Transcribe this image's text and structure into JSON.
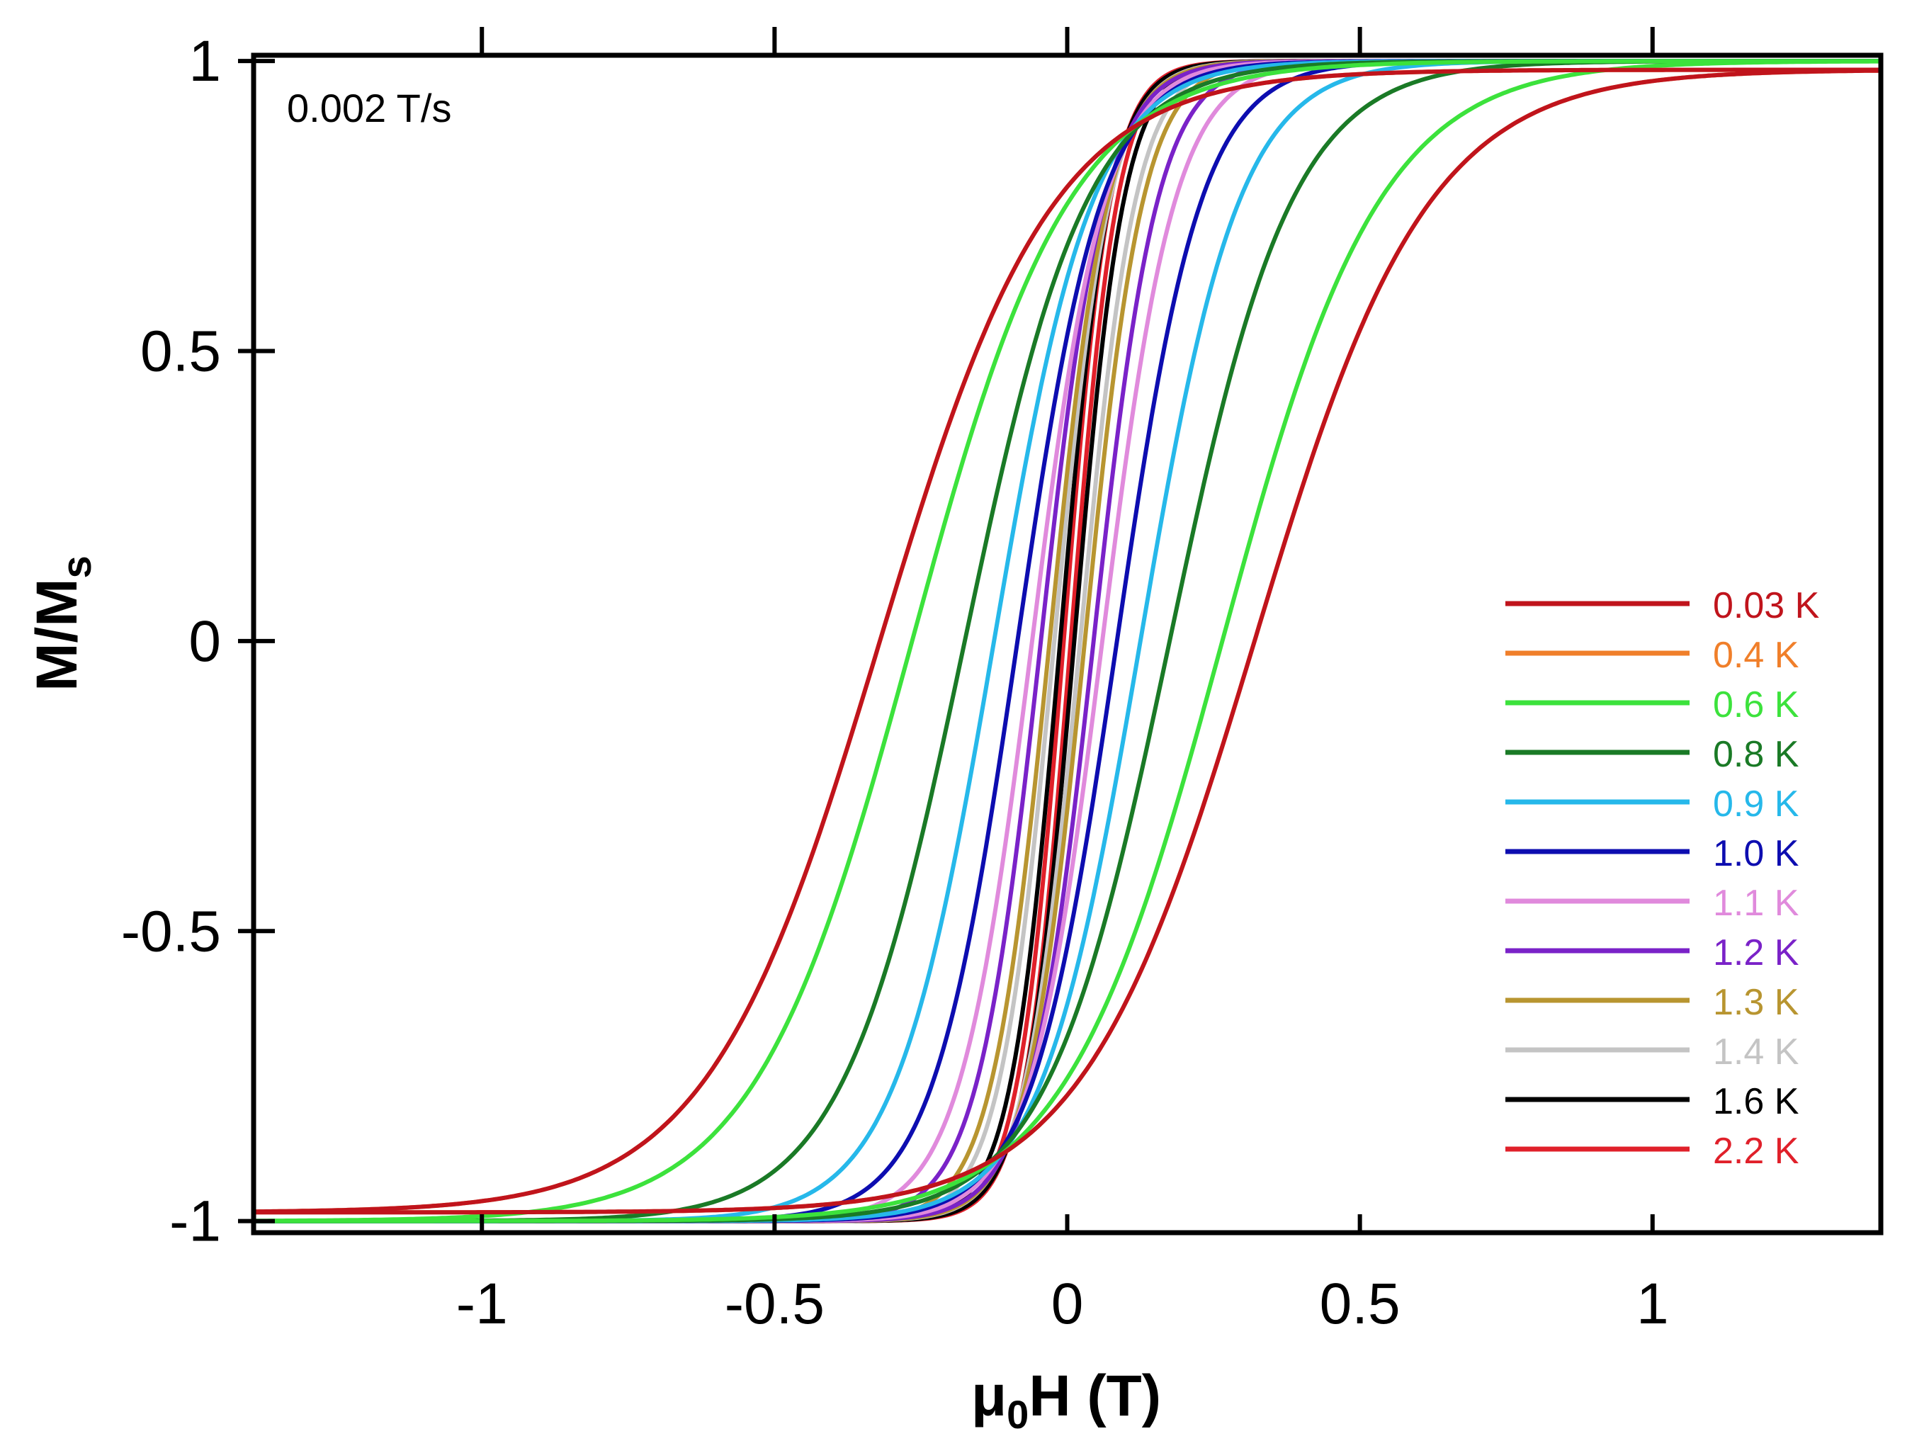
{
  "chart_data": {
    "type": "line",
    "annotation": "0.002 T/s",
    "xlabel": {
      "main": "μ",
      "sub": "0",
      "rest": "H (T)"
    },
    "ylabel": {
      "main": "M/M",
      "sub": "s"
    },
    "xlim": [
      -1.39,
      1.39
    ],
    "ylim": [
      -1.02,
      1.01
    ],
    "xticks": [
      -1,
      -0.5,
      0,
      0.5,
      1
    ],
    "xtick_labels": [
      "-1",
      "-0.5",
      "0",
      "0.5",
      "1"
    ],
    "yticks": [
      -1,
      -0.5,
      0,
      0.5,
      1
    ],
    "ytick_labels": [
      "-1",
      "-0.5",
      "0",
      "0.5",
      "1"
    ],
    "legend_position": "right",
    "series": [
      {
        "name": "0.03 K",
        "color": "#c0141c",
        "coercive_field": 0.32,
        "width": 0.295,
        "knee": 0.27
      },
      {
        "name": "0.4 K",
        "color": "#f07f2a",
        "coercive_field": 0.32,
        "width": 0.295,
        "knee": 0.27
      },
      {
        "name": "0.6 K",
        "color": "#3ce23c",
        "coercive_field": 0.265,
        "width": 0.27
      },
      {
        "name": "0.8 K",
        "color": "#1a7a26",
        "coercive_field": 0.175,
        "width": 0.21
      },
      {
        "name": "0.9 K",
        "color": "#26b8ea",
        "coercive_field": 0.125,
        "width": 0.17
      },
      {
        "name": "1.0 K",
        "color": "#0d0db0",
        "coercive_field": 0.085,
        "width": 0.145
      },
      {
        "name": "1.1 K",
        "color": "#e08adc",
        "coercive_field": 0.06,
        "width": 0.125
      },
      {
        "name": "1.2 K",
        "color": "#7a22c8",
        "coercive_field": 0.045,
        "width": 0.11
      },
      {
        "name": "1.3 K",
        "color": "#b89530",
        "coercive_field": 0.03,
        "width": 0.1
      },
      {
        "name": "1.4 K",
        "color": "#c4c4c4",
        "coercive_field": 0.022,
        "width": 0.095
      },
      {
        "name": "1.6 K",
        "color": "#000000",
        "coercive_field": 0.012,
        "width": 0.085
      },
      {
        "name": "2.2 K",
        "color": "#e0202a",
        "coercive_field": 0.006,
        "width": 0.08
      }
    ]
  }
}
